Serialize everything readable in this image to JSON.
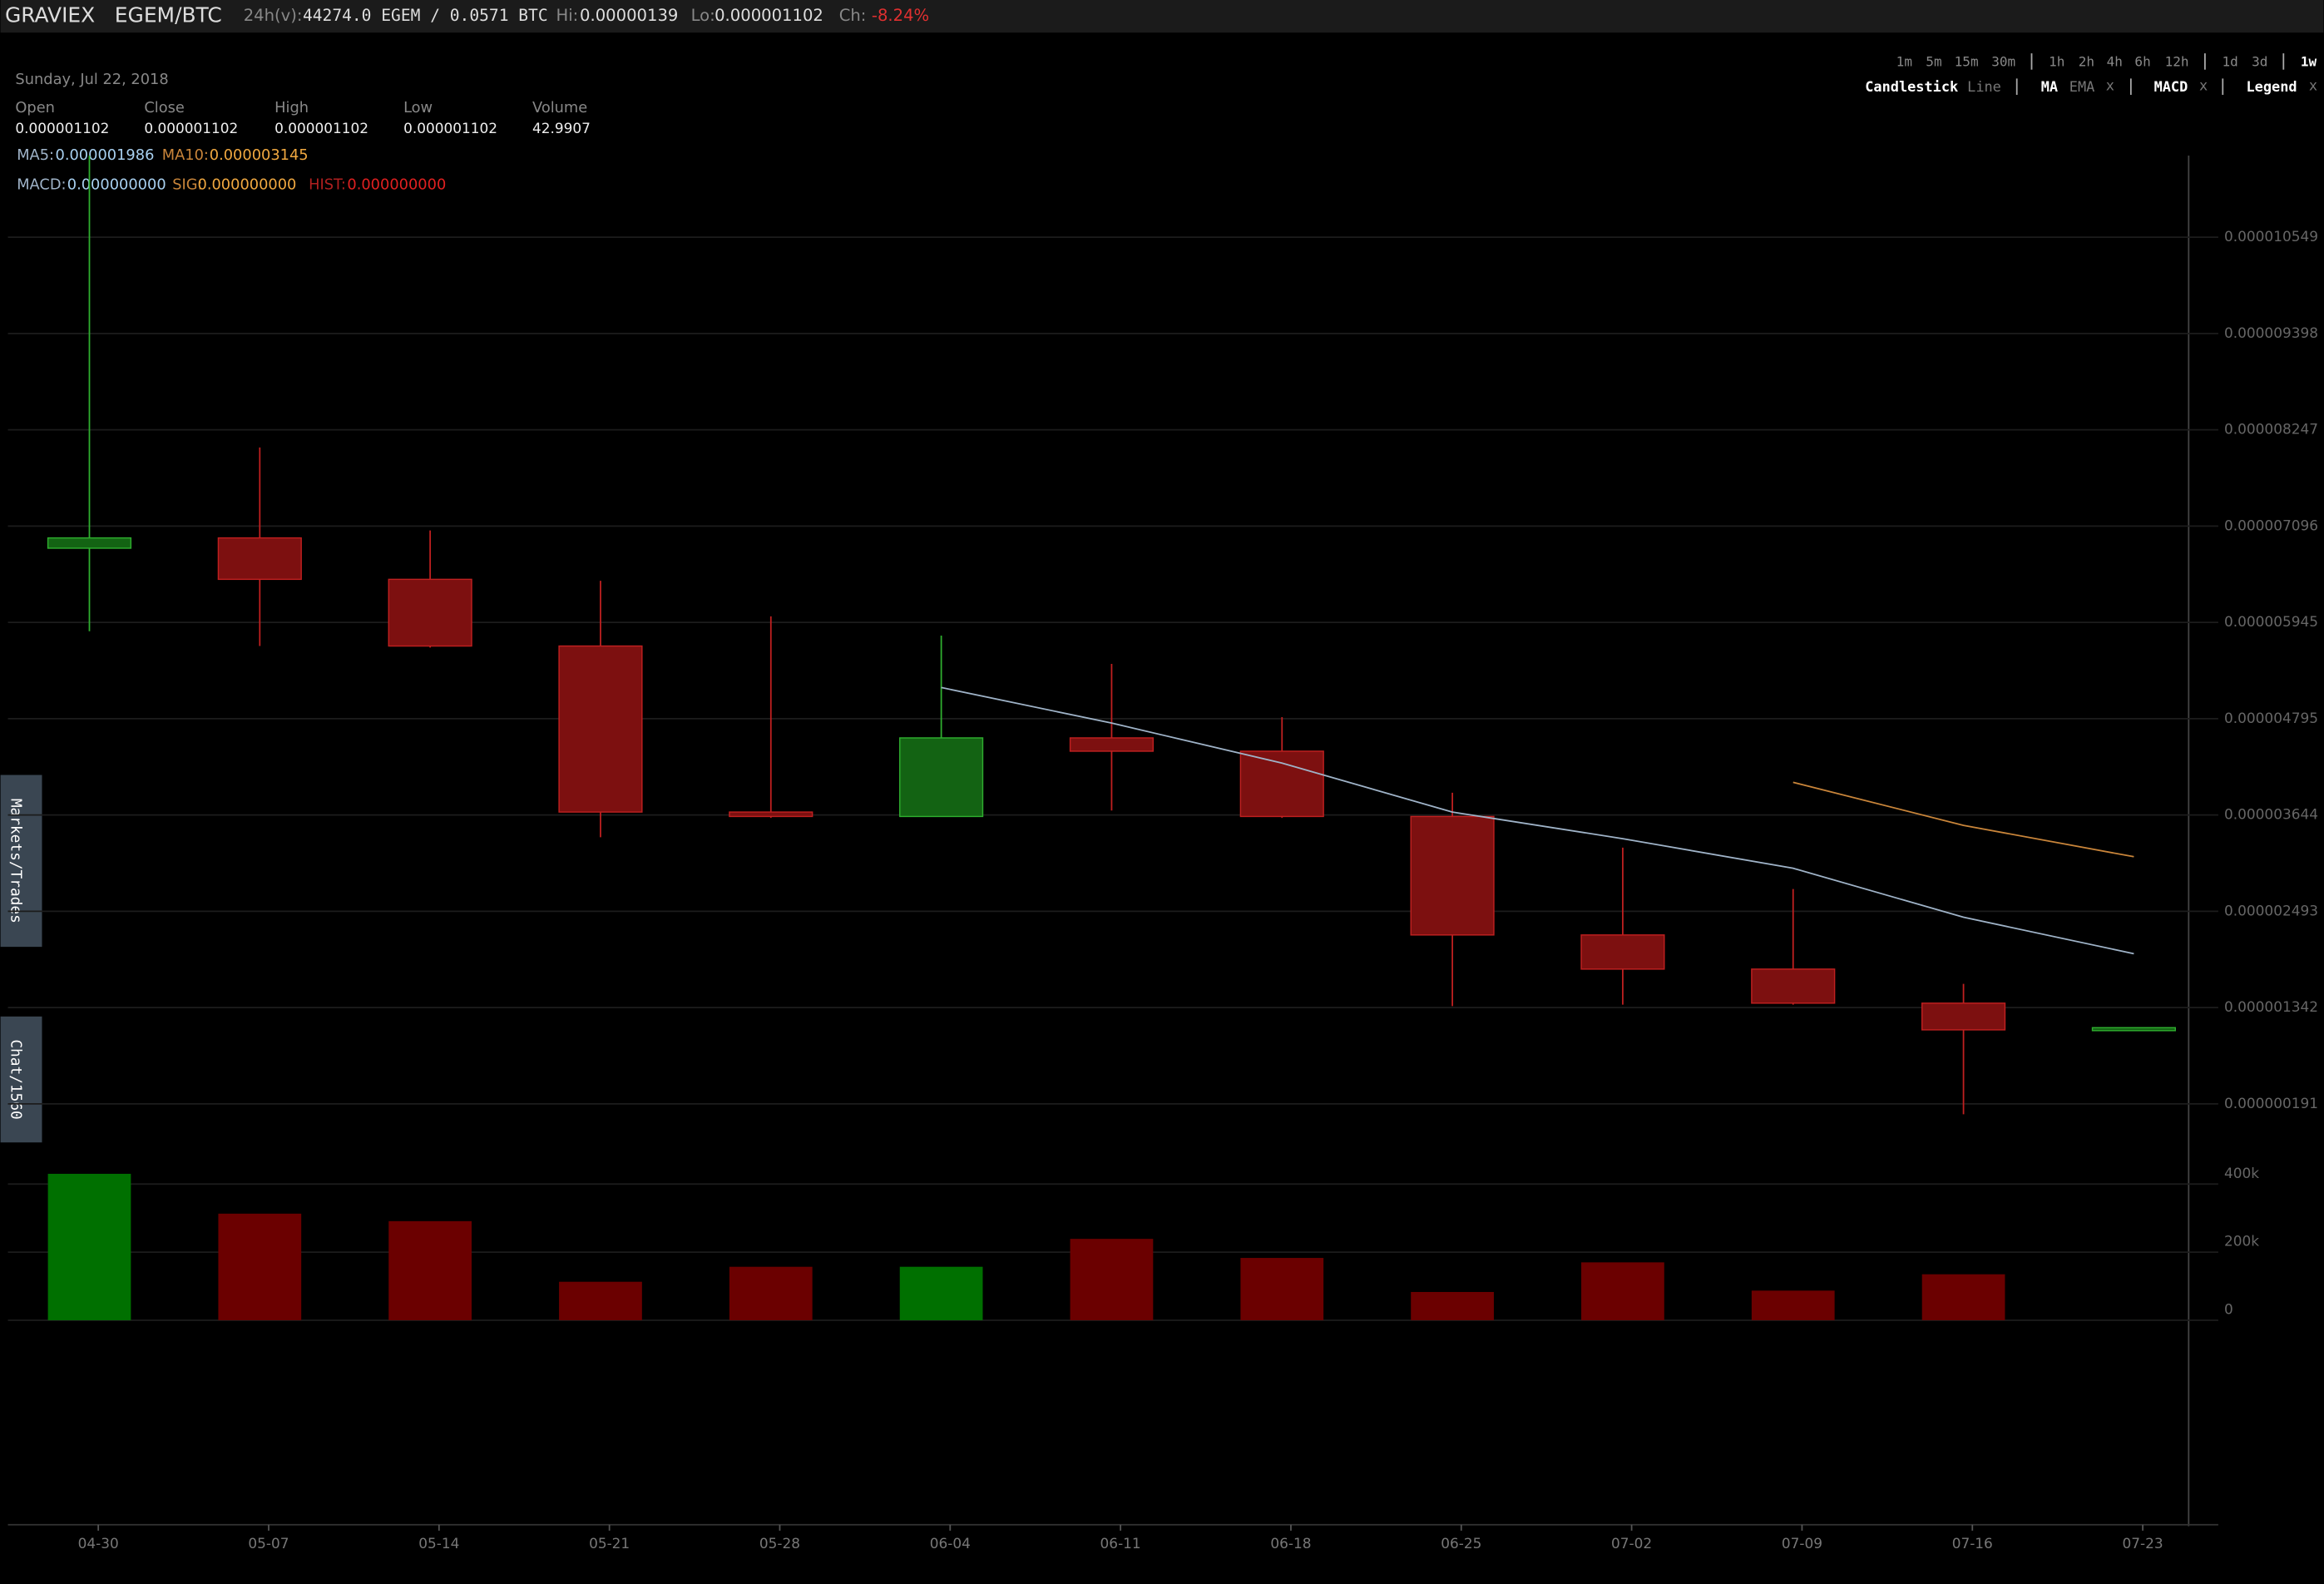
{
  "header": {
    "exchange": "GRAVIEX",
    "pair": "EGEM/BTC",
    "volume_label": "24h(v):",
    "volume": "44274.0 EGEM / 0.0571 BTC",
    "hi_label": "Hi:",
    "hi": "0.00000139",
    "lo_label": "Lo:",
    "lo": "0.000001102",
    "ch_label": "Ch:",
    "ch": "-8.24%"
  },
  "toolbar": {
    "intervals": [
      "1m",
      "5m",
      "15m",
      "30m",
      "1h",
      "2h",
      "4h",
      "6h",
      "12h",
      "1d",
      "3d",
      "1w"
    ],
    "active_interval": "1w",
    "chart_types": [
      "Candlestick",
      "Line"
    ],
    "indicators": [
      "MA",
      "EMA"
    ],
    "macd": "MACD",
    "legend": "Legend",
    "close_symbol": "x"
  },
  "side_tabs": [
    "Markets/Trades",
    "Chat/1560"
  ],
  "legend": {
    "date": "Sunday, Jul 22, 2018",
    "fields": [
      {
        "label": "Open",
        "value": "0.000001102"
      },
      {
        "label": "Close",
        "value": "0.000001102"
      },
      {
        "label": "High",
        "value": "0.000001102"
      },
      {
        "label": "Low",
        "value": "0.000001102"
      },
      {
        "label": "Volume",
        "value": "42.9907"
      }
    ],
    "ma5_label": "MA5:",
    "ma5": "0.000001986",
    "ma10_label": "MA10:",
    "ma10": "0.000003145",
    "macd_label": "MACD:",
    "macd": "0.000000000",
    "sig_label": "SIG:",
    "sig": "0.000000000",
    "hist_label": "HIST:",
    "hist": "0.000000000"
  },
  "chart_data": {
    "type": "candlestick",
    "categories": [
      "04-30",
      "05-07",
      "05-14",
      "05-21",
      "05-28",
      "06-04",
      "06-11",
      "06-18",
      "06-25",
      "07-02",
      "07-09",
      "07-16",
      "07-23"
    ],
    "open": [
      6.832e-06,
      6.955e-06,
      6.46e-06,
      5.663e-06,
      3.679e-06,
      3.626e-06,
      4.565e-06,
      4.406e-06,
      3.626e-06,
      2.21e-06,
      1.802e-06,
      1.395e-06,
      1.102e-06
    ],
    "high": [
      1.1524e-05,
      8.036e-06,
      7.044e-06,
      6.442e-06,
      6.017e-06,
      5.787e-06,
      5.45e-06,
      4.813e-06,
      3.91e-06,
      3.254e-06,
      2.759e-06,
      1.625e-06,
      1.102e-06
    ],
    "low": [
      5.84e-06,
      5.663e-06,
      5.645e-06,
      3.378e-06,
      3.609e-06,
      3.626e-06,
      3.697e-06,
      3.609e-06,
      1.36e-06,
      1.377e-06,
      1.377e-06,
      6.7e-08,
      1.102e-06
    ],
    "close": [
      6.955e-06,
      6.46e-06,
      5.663e-06,
      3.679e-06,
      3.626e-06,
      4.565e-06,
      4.406e-06,
      3.626e-06,
      2.21e-06,
      1.802e-06,
      1.395e-06,
      1.076e-06,
      1.102e-06
    ],
    "up_color": "#136313",
    "up_stroke": "#2fae2f",
    "down_color": "#7d1010",
    "down_stroke": "#c02020",
    "ma5": {
      "name": "MA5",
      "color": "#9fb3c8",
      "values": [
        null,
        null,
        null,
        null,
        null,
        5.167e-06,
        4.742e-06,
        4.264e-06,
        3.679e-06,
        3.361e-06,
        3.007e-06,
        2.422e-06,
        1.986e-06
      ]
    },
    "ma10": {
      "name": "MA10",
      "color": "#c9853a",
      "values": [
        null,
        null,
        null,
        null,
        null,
        null,
        null,
        null,
        null,
        null,
        4.034e-06,
        3.52e-06,
        3.145e-06
      ]
    },
    "ylim": [
      6.7e-08,
      1.1524e-05
    ],
    "yticks": [
      {
        "value": 1.91e-07,
        "label": "0.000000191"
      },
      {
        "value": 1.342e-06,
        "label": "0.000001342"
      },
      {
        "value": 2.493e-06,
        "label": "0.000002493"
      },
      {
        "value": 3.644e-06,
        "label": "0.000003644"
      },
      {
        "value": 4.795e-06,
        "label": "0.000004795"
      },
      {
        "value": 5.945e-06,
        "label": "0.000005945"
      },
      {
        "value": 7.096e-06,
        "label": "0.000007096"
      },
      {
        "value": 8.247e-06,
        "label": "0.000008247"
      },
      {
        "value": 9.398e-06,
        "label": "0.000009398"
      },
      {
        "value": 1.0549e-05,
        "label": "0.000010549"
      }
    ],
    "volume": {
      "values": [
        430000,
        313000,
        291000,
        113000,
        157000,
        157000,
        239000,
        183000,
        83000,
        170000,
        87000,
        135000,
        42.9907
      ],
      "up_color": "#007000",
      "down_color": "#6b0000"
    },
    "vlim": [
      0,
      570000
    ],
    "vticks": [
      0,
      {
        "value": 200000,
        "label": "200k"
      },
      {
        "value": 400000,
        "label": "400k"
      }
    ],
    "grid": true
  }
}
